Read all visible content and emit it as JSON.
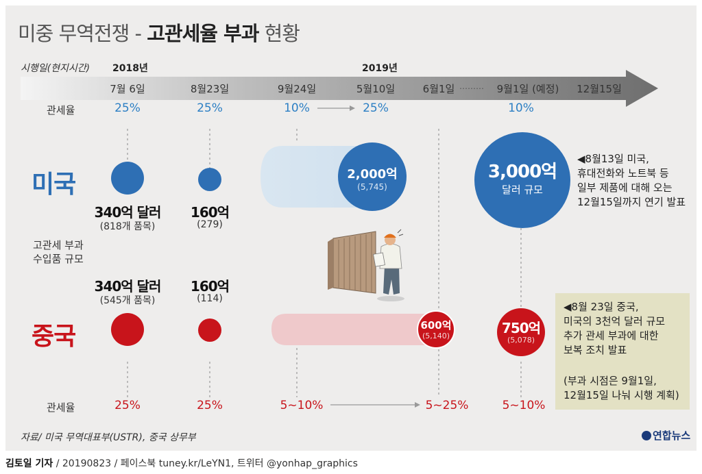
{
  "title": {
    "light": "미중 무역전쟁 - ",
    "bold": "고관세율 부과",
    "tail": " 현황"
  },
  "timeline": {
    "label": "시행일(현지시간)",
    "year_2018": "2018년",
    "year_2019": "2019년",
    "dates": [
      "7월 6일",
      "8월23일",
      "9월24일",
      "5월10일",
      "6월1일",
      "9월1일 (예정)",
      "12월15일"
    ],
    "ellipsis": "………"
  },
  "us": {
    "name": "미국",
    "rate_label": "관세율",
    "rates": [
      "25%",
      "25%",
      "10%",
      "25%",
      "10%"
    ],
    "amounts": [
      {
        "main": "340억 달러",
        "sub": "(818개 품목)"
      },
      {
        "main": "160억",
        "sub": "(279)"
      }
    ],
    "circle_2000": {
      "main": "2,000억",
      "sub": "(5,745)"
    },
    "circle_3000": {
      "main": "3,000억",
      "sub": "달러 규모"
    },
    "note": [
      "◀8월13일 미국,",
      "휴대전화와 노트북 등",
      "일부 제품에 대해 오는",
      "12월15일까지 연기 발표"
    ]
  },
  "scale_label": [
    "고관세 부과",
    "수입품 규모"
  ],
  "china": {
    "name": "중국",
    "rate_label": "관세율",
    "rates": [
      "25%",
      "25%",
      "5~10%",
      "5~25%",
      "5~10%"
    ],
    "amounts": [
      {
        "main": "340억 달러",
        "sub": "(545개 품목)"
      },
      {
        "main": "160억",
        "sub": "(114)"
      }
    ],
    "circle_600": {
      "main": "600억",
      "sub": "(5,140)"
    },
    "circle_750": {
      "main": "750억",
      "sub": "(5,078)"
    },
    "note": [
      "◀8월 23일 중국,",
      "미국의 3천억 달러 규모",
      "추가 관세 부과에 대한",
      "보복 조치 발표"
    ],
    "note2": [
      "(부과 시점은 9월1일,",
      "12월15일 나눠 시행 계획)"
    ]
  },
  "source": "자료/ 미국 무역대표부(USTR), 중국 상무부",
  "logo": "연합뉴스",
  "credit": {
    "author": "김토일 기자",
    "rest": " / 20190823 / 페이스북 tuney.kr/LeYN1, 트위터 @yonhap_graphics"
  },
  "colors": {
    "us_blue": "#2e6fb4",
    "us_light": "#cfe0ee",
    "cn_red": "#c8141b",
    "cn_light": "#efc9cb",
    "note_box": "#e3e1c4",
    "arrow": "#6e6e6e"
  }
}
